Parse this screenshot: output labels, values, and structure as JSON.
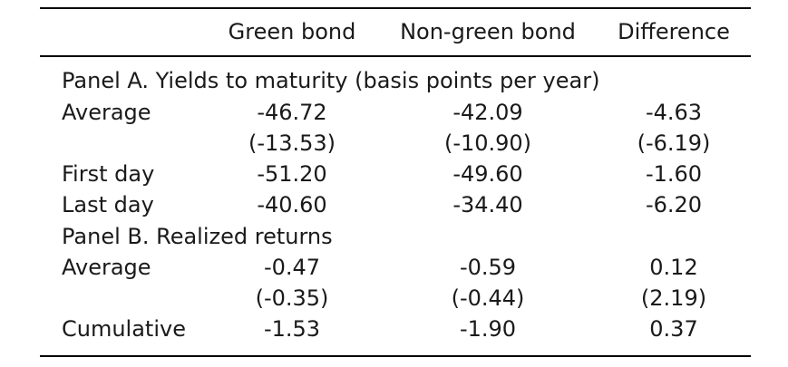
{
  "columns": {
    "green": "Green bond",
    "nongreen": "Non-green bond",
    "difference": "Difference"
  },
  "panel_a": {
    "title": "Panel A. Yields to maturity (basis points per year)",
    "rows": [
      {
        "label": "Average",
        "green": "-46.72",
        "nongreen": "-42.09",
        "difference": "-4.63"
      },
      {
        "label": "",
        "green": "(-13.53)",
        "nongreen": "(-10.90)",
        "difference": "(-6.19)"
      },
      {
        "label": "First day",
        "green": "-51.20",
        "nongreen": "-49.60",
        "difference": "-1.60"
      },
      {
        "label": "Last day",
        "green": "-40.60",
        "nongreen": "-34.40",
        "difference": "-6.20"
      }
    ]
  },
  "panel_b": {
    "title": "Panel B. Realized returns",
    "rows": [
      {
        "label": "Average",
        "green": "-0.47",
        "nongreen": "-0.59",
        "difference": "0.12"
      },
      {
        "label": "",
        "green": "(-0.35)",
        "nongreen": "(-0.44)",
        "difference": "(2.19)"
      },
      {
        "label": "Cumulative",
        "green": "-1.53",
        "nongreen": "-1.90",
        "difference": "0.37"
      }
    ]
  }
}
